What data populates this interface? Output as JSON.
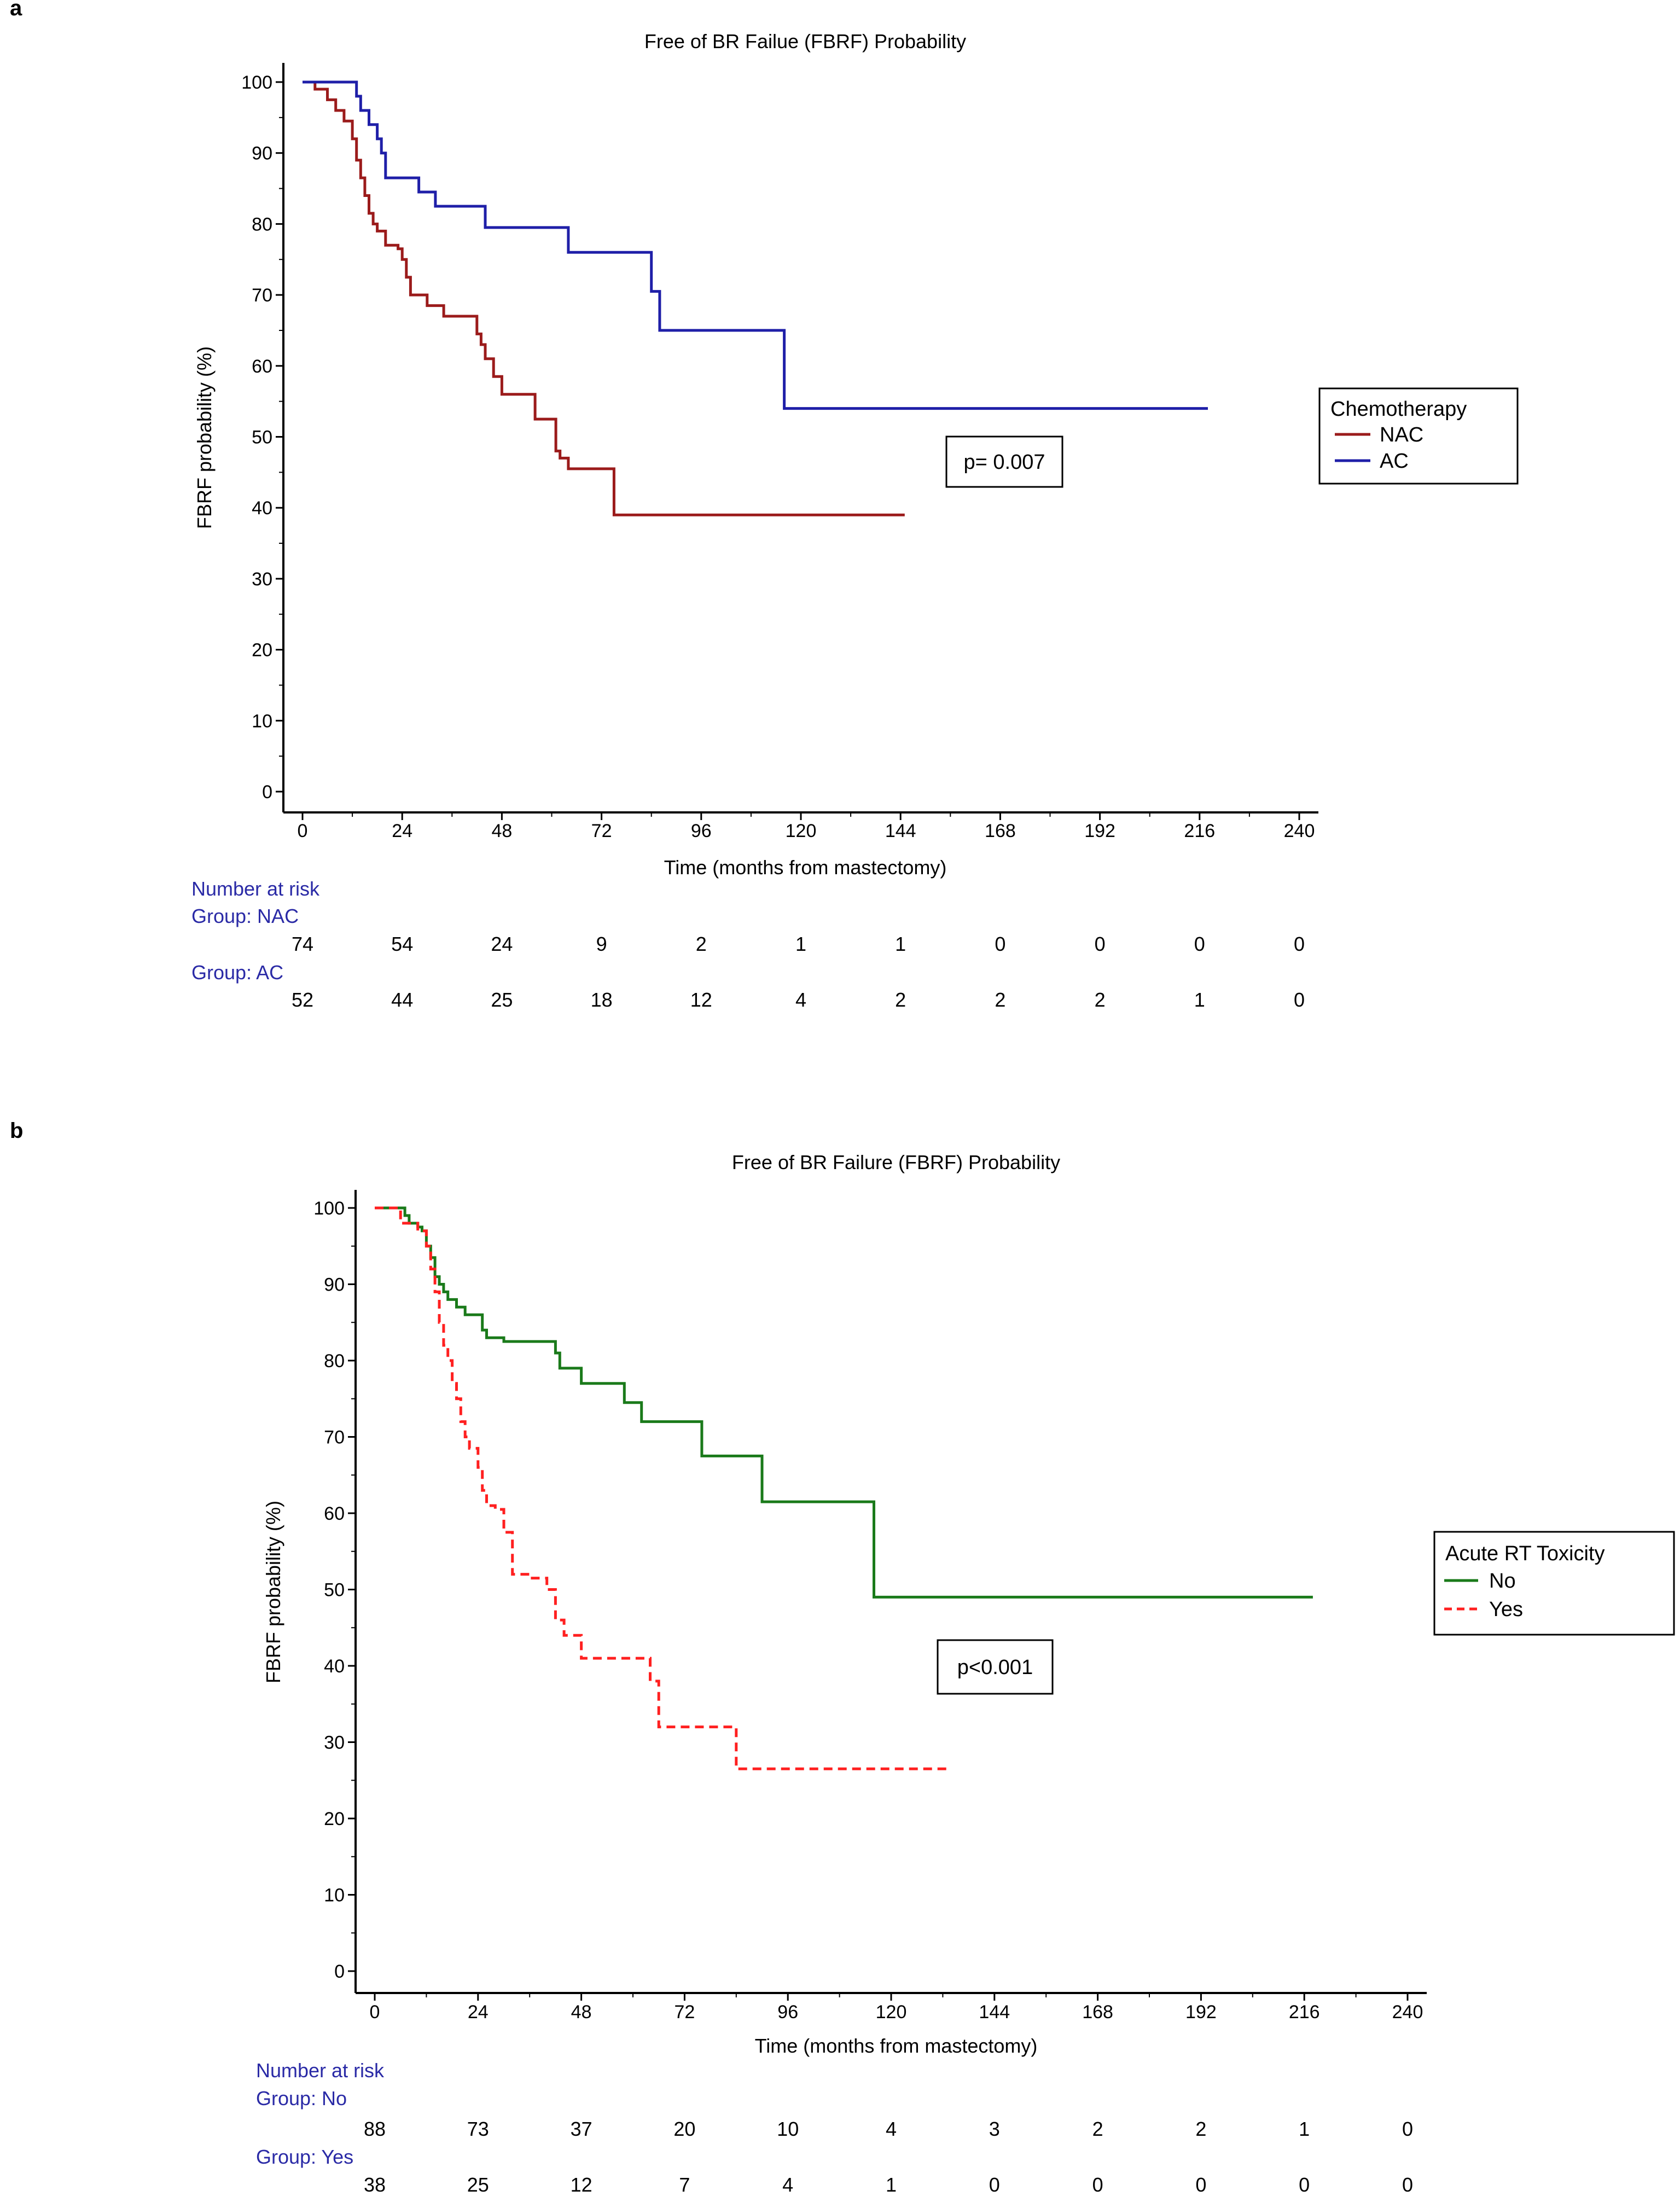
{
  "chart_data": [
    {
      "type": "line",
      "step": true,
      "panel_label": "a",
      "title": "Free of BR Failue (FBRF) Probability",
      "xlabel": "Time (months from mastectomy)",
      "ylabel": "FBRF probability (%)",
      "xlim": [
        0,
        240
      ],
      "ylim": [
        0,
        100
      ],
      "xticks": [
        0,
        24,
        48,
        72,
        96,
        120,
        144,
        168,
        192,
        216,
        240
      ],
      "yticks": [
        0,
        10,
        20,
        30,
        40,
        50,
        60,
        70,
        80,
        90,
        100
      ],
      "tick_labels_x": [
        "0",
        "24",
        "48",
        "72",
        "96",
        "120",
        "144",
        "168",
        "192",
        "216",
        "240"
      ],
      "tick_labels_y": [
        "0",
        "10",
        "20",
        "30",
        "40",
        "50",
        "60",
        "70",
        "80",
        "90",
        "100"
      ],
      "legend_title": "Chemotherapy",
      "legend_position": "right",
      "annotation": "p= 0.007",
      "series": [
        {
          "name": "NAC",
          "color": "#9b1b1b",
          "dash": false,
          "x": [
            0,
            3,
            6,
            8,
            10,
            12,
            13,
            14,
            15,
            16,
            17,
            18,
            20,
            23,
            24,
            25,
            26,
            30,
            34,
            40,
            42,
            43,
            44,
            46,
            48,
            56,
            61,
            62,
            64,
            75,
            145
          ],
          "y": [
            100,
            99,
            97.5,
            96,
            94.5,
            92,
            89,
            86.5,
            84,
            81.5,
            80,
            79,
            77,
            76.5,
            75,
            72.5,
            70,
            68.5,
            67,
            67,
            64.5,
            63,
            61,
            58.5,
            56,
            52.5,
            48,
            47,
            45.5,
            39,
            39
          ]
        },
        {
          "name": "AC",
          "color": "#1f1fa8",
          "dash": false,
          "x": [
            0,
            12,
            13,
            14,
            16,
            18,
            19,
            20,
            24,
            28,
            32,
            38,
            44,
            58,
            64,
            72,
            82,
            84,
            86,
            90,
            100,
            116,
            218
          ],
          "y": [
            100,
            100,
            98,
            96,
            94,
            92,
            90,
            86.5,
            86.5,
            84.5,
            82.5,
            82.5,
            79.5,
            79.5,
            76,
            76,
            76,
            70.5,
            65,
            65,
            65,
            54,
            54
          ]
        }
      ],
      "risk_table": {
        "header": "Number at risk",
        "groups": [
          {
            "label": "Group: NAC",
            "values": [
              "74",
              "54",
              "24",
              "9",
              "2",
              "1",
              "1",
              "0",
              "0",
              "0",
              "0"
            ]
          },
          {
            "label": "Group: AC",
            "values": [
              "52",
              "44",
              "25",
              "18",
              "12",
              "4",
              "2",
              "2",
              "2",
              "1",
              "0"
            ]
          }
        ]
      }
    },
    {
      "type": "line",
      "step": true,
      "panel_label": "b",
      "title": "Free of BR Failure (FBRF) Probability",
      "xlabel": "Time (months from mastectomy)",
      "ylabel": "FBRF probability (%)",
      "xlim": [
        0,
        240
      ],
      "ylim": [
        0,
        100
      ],
      "xticks": [
        0,
        24,
        48,
        72,
        96,
        120,
        144,
        168,
        192,
        216,
        240
      ],
      "yticks": [
        0,
        10,
        20,
        30,
        40,
        50,
        60,
        70,
        80,
        90,
        100
      ],
      "tick_labels_x": [
        "0",
        "24",
        "48",
        "72",
        "96",
        "120",
        "144",
        "168",
        "192",
        "216",
        "240"
      ],
      "tick_labels_y": [
        "0",
        "10",
        "20",
        "30",
        "40",
        "50",
        "60",
        "70",
        "80",
        "90",
        "100"
      ],
      "legend_title": "Acute RT Toxicity",
      "legend_position": "right",
      "annotation": "p<0.001",
      "series": [
        {
          "name": "No",
          "color": "#1a7a1a",
          "dash": false,
          "x": [
            0,
            6,
            7,
            8,
            10,
            11,
            12,
            13,
            14,
            15,
            16,
            17,
            19,
            21,
            23,
            25,
            26,
            30,
            34,
            38,
            42,
            43,
            44,
            46,
            48,
            50,
            58,
            62,
            66,
            76,
            82,
            90,
            116,
            218
          ],
          "y": [
            100,
            100,
            99,
            98,
            97.5,
            97,
            95,
            93.5,
            91,
            90,
            89,
            88,
            87,
            86,
            86,
            84,
            83,
            82.5,
            82.5,
            82.5,
            81,
            79,
            79,
            79,
            77,
            77,
            74.5,
            72,
            72,
            67.5,
            67.5,
            61.5,
            49,
            49
          ]
        },
        {
          "name": "Yes",
          "color": "#ff2020",
          "dash": true,
          "x": [
            0,
            4,
            6,
            10,
            12,
            13,
            14,
            15,
            16,
            17,
            18,
            19,
            20,
            21,
            22,
            24,
            25,
            26,
            28,
            30,
            32,
            36,
            40,
            42,
            44,
            48,
            56,
            64,
            66,
            84,
            133
          ],
          "y": [
            100,
            100,
            98,
            97,
            95,
            92,
            89,
            85,
            82,
            80,
            77,
            75,
            72,
            70,
            68.5,
            66,
            63,
            61,
            60.5,
            57.5,
            52,
            51.5,
            50,
            46,
            44,
            41,
            41,
            38,
            32,
            26.5,
            26.5
          ]
        }
      ],
      "risk_table": {
        "header": "Number at risk",
        "groups": [
          {
            "label": "Group: No",
            "values": [
              "88",
              "73",
              "37",
              "20",
              "10",
              "4",
              "3",
              "2",
              "2",
              "1",
              "0"
            ]
          },
          {
            "label": "Group: Yes",
            "values": [
              "38",
              "25",
              "12",
              "7",
              "4",
              "1",
              "0",
              "0",
              "0",
              "0",
              "0"
            ]
          }
        ]
      }
    }
  ]
}
